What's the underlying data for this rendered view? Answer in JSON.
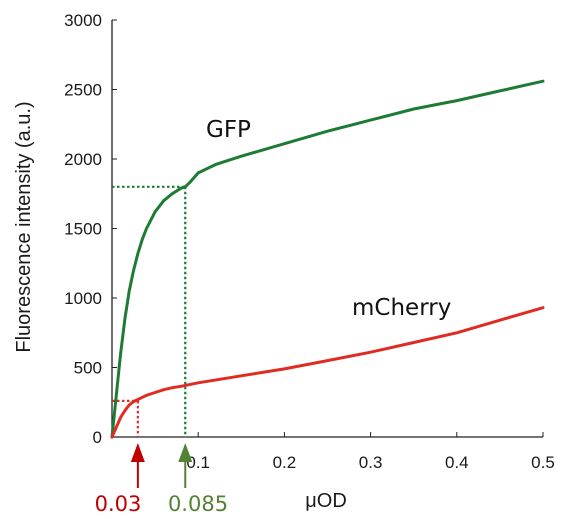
{
  "chart_data": {
    "type": "line",
    "title": "",
    "xlabel": "μOD",
    "ylabel": "Fluorescence intensity (a.u.)",
    "xlim": [
      0,
      0.5
    ],
    "ylim": [
      0,
      3000
    ],
    "x_ticks": [
      0.1,
      0.2,
      0.3,
      0.4,
      0.5
    ],
    "x_tick_labels": [
      "0.1",
      "0.2",
      "0.3",
      "0.4",
      "0.5"
    ],
    "y_ticks": [
      0,
      500,
      1000,
      1500,
      2000,
      2500,
      3000
    ],
    "y_tick_labels": [
      "0",
      "500",
      "1000",
      "1500",
      "2000",
      "2500",
      "3000"
    ],
    "grid": false,
    "series": [
      {
        "name": "GFP",
        "color": "#1e7b34",
        "x": [
          0,
          0.005,
          0.01,
          0.015,
          0.02,
          0.025,
          0.03,
          0.035,
          0.04,
          0.05,
          0.06,
          0.07,
          0.08,
          0.085,
          0.09,
          0.1,
          0.12,
          0.15,
          0.2,
          0.25,
          0.3,
          0.35,
          0.4,
          0.45,
          0.5
        ],
        "y": [
          0,
          300,
          600,
          850,
          1050,
          1200,
          1320,
          1420,
          1500,
          1620,
          1700,
          1750,
          1790,
          1800,
          1830,
          1900,
          1960,
          2020,
          2110,
          2200,
          2280,
          2360,
          2420,
          2490,
          2560
        ]
      },
      {
        "name": "mCherry",
        "color": "#e02b23",
        "x": [
          0,
          0.005,
          0.01,
          0.015,
          0.02,
          0.025,
          0.03,
          0.04,
          0.05,
          0.06,
          0.07,
          0.08,
          0.1,
          0.15,
          0.2,
          0.25,
          0.3,
          0.35,
          0.4,
          0.45,
          0.5
        ],
        "y": [
          0,
          70,
          140,
          190,
          230,
          255,
          270,
          300,
          320,
          340,
          355,
          365,
          390,
          440,
          490,
          550,
          610,
          680,
          750,
          840,
          930
        ]
      }
    ],
    "annotations": [
      {
        "label": "0.03",
        "x": 0.03,
        "y": 260,
        "color": "#c00000"
      },
      {
        "label": "0.085",
        "x": 0.085,
        "y": 1800,
        "color": "#548235"
      }
    ]
  }
}
